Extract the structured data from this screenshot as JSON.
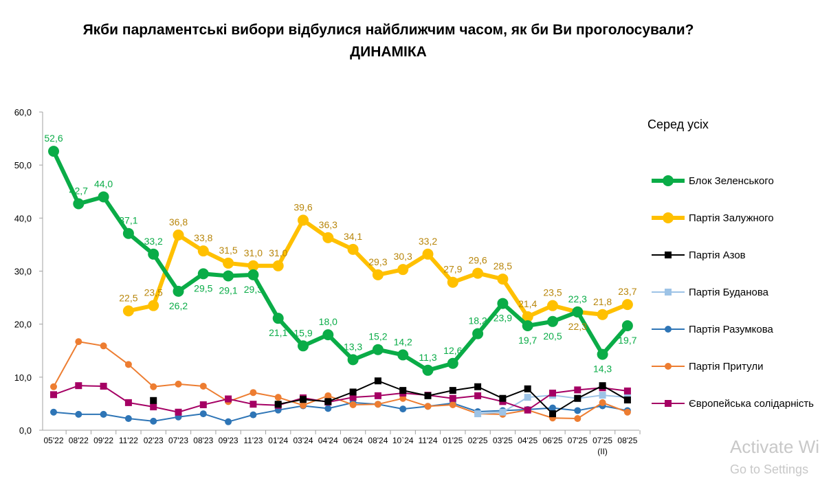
{
  "title_line1": "Якби парламентські вибори відбулися найближчим часом, як би Ви проголосували?",
  "title_line2": "ДИНАМІКА",
  "legend_title": "Серед усіх",
  "watermark": {
    "line1": "Activate Windows",
    "line2": "Go to Settings"
  },
  "chart_data": {
    "type": "line",
    "title": "Якби парламентські вибори відбулися найближчим часом, як би Ви проголосували? ДИНАМІКА",
    "ylim": [
      0,
      60
    ],
    "yticks": [
      "0,0",
      "10,0",
      "20,0",
      "30,0",
      "40,0",
      "50,0",
      "60,0"
    ],
    "categories": [
      "05'22",
      "08'22",
      "09'22",
      "11'22",
      "02'23",
      "07'23",
      "08'23",
      "09'23",
      "11'23",
      "01'24",
      "03'24",
      "04'24",
      "06'24",
      "08'24",
      "10`24",
      "11'24",
      "01'25",
      "02'25",
      "03'25",
      "04'25",
      "06'25",
      "07'25",
      "07'25",
      "08'25"
    ],
    "category_sublabels": {
      "22": "(ІІ)"
    },
    "legend_position": "right",
    "series": [
      {
        "name": "Блок Зеленського",
        "color": "#0aac47",
        "marker": "circle",
        "labels": true,
        "values": [
          52.6,
          42.7,
          44.0,
          37.1,
          33.2,
          26.2,
          29.5,
          29.1,
          29.3,
          21.1,
          15.9,
          18.0,
          13.3,
          15.2,
          14.2,
          11.3,
          12.6,
          18.2,
          23.9,
          19.7,
          20.5,
          22.3,
          14.3,
          19.7
        ]
      },
      {
        "name": "Партія Залужного",
        "color": "#ffc000",
        "label_color": "#b8860b",
        "marker": "circle",
        "labels": true,
        "values": [
          null,
          null,
          null,
          22.5,
          23.5,
          36.8,
          33.8,
          31.5,
          31.0,
          31.0,
          39.6,
          36.3,
          34.1,
          29.3,
          30.3,
          33.2,
          27.9,
          29.6,
          28.5,
          21.4,
          23.5,
          22.3,
          21.8,
          23.7
        ]
      },
      {
        "name": "Партія Азов",
        "color": "#000000",
        "marker": "square",
        "values": [
          null,
          null,
          null,
          null,
          5.6,
          null,
          null,
          null,
          null,
          4.9,
          5.8,
          5.4,
          7.2,
          9.3,
          7.5,
          6.5,
          7.5,
          8.2,
          6.0,
          7.8,
          3.1,
          6.0,
          8.4,
          5.7
        ]
      },
      {
        "name": "Партія Буданова",
        "color": "#9dc3e6",
        "marker": "square",
        "values": [
          null,
          null,
          null,
          null,
          null,
          null,
          null,
          null,
          null,
          null,
          null,
          null,
          null,
          null,
          null,
          null,
          null,
          3.1,
          3.4,
          6.2,
          6.6,
          6.0,
          6.6,
          6.2
        ]
      },
      {
        "name": "Партія Разумкова",
        "color": "#2e75b6",
        "marker": "circle",
        "values": [
          3.4,
          3.0,
          3.0,
          2.2,
          1.7,
          2.5,
          3.1,
          1.6,
          2.9,
          3.8,
          4.6,
          4.1,
          5.2,
          4.9,
          4.0,
          4.5,
          5.1,
          3.5,
          3.7,
          3.9,
          4.2,
          3.7,
          4.6,
          3.7
        ]
      },
      {
        "name": "Партія Притули",
        "color": "#ed7d31",
        "marker": "circle",
        "values": [
          8.2,
          16.7,
          15.9,
          12.4,
          8.2,
          8.7,
          8.3,
          5.4,
          7.1,
          6.2,
          4.7,
          6.5,
          4.8,
          4.9,
          6.0,
          4.5,
          4.8,
          3.1,
          3.0,
          3.8,
          2.3,
          2.2,
          5.2,
          3.4
        ]
      },
      {
        "name": "Європейська солідарність",
        "color": "#a50064",
        "marker": "square",
        "values": [
          6.7,
          8.4,
          8.3,
          5.2,
          4.4,
          3.4,
          4.8,
          5.9,
          4.9,
          4.7,
          6.1,
          5.3,
          6.2,
          6.5,
          7.0,
          6.6,
          6.0,
          6.5,
          5.4,
          3.8,
          7.0,
          7.6,
          8.0,
          7.4
        ]
      }
    ]
  }
}
